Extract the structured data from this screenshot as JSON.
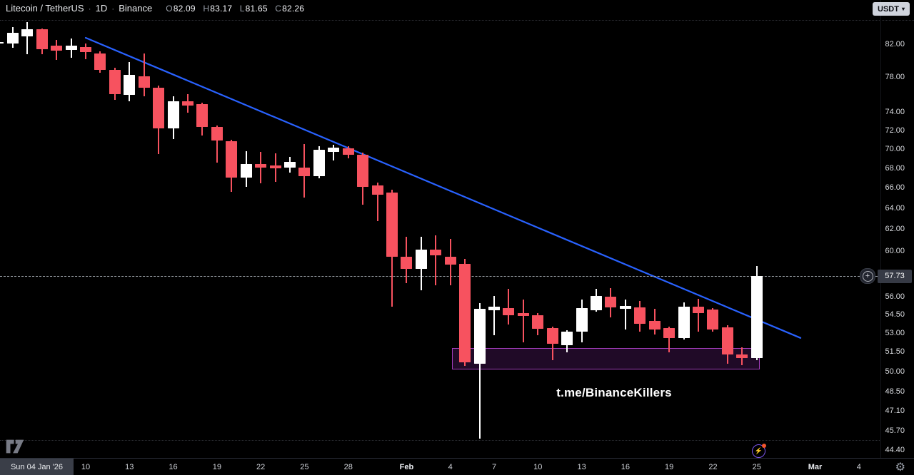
{
  "header": {
    "symbol": "Litecoin / TetherUS",
    "interval": "1D",
    "exchange": "Binance",
    "sep": "·",
    "ohlc": [
      {
        "label": "O",
        "value": "82.09"
      },
      {
        "label": "H",
        "value": "83.17"
      },
      {
        "label": "L",
        "value": "81.65"
      },
      {
        "label": "C",
        "value": "82.26"
      }
    ],
    "currency_button": {
      "label": "USDT",
      "caret": "▾"
    }
  },
  "footer": {
    "crosshair_date": "Sun 04 Jan '26",
    "gear_icon": "⚙"
  },
  "price_tag": {
    "plus": "+",
    "value": "57.73"
  },
  "chart_data": {
    "type": "candlestick",
    "title": "Litecoin / TetherUS · 1D · Binance",
    "scale": "logarithmic",
    "watermark": "t.me/BinanceKillers",
    "colors": {
      "up": "#ffffff",
      "down": "#f7525f",
      "trendline": "#2962ff",
      "zone_border": "#a23dbb",
      "zone_fill": "rgba(146,44,176,0.22)",
      "price_line": "#9aa0a6"
    },
    "last_price": 57.73,
    "y_axis": {
      "labels": [
        "82.00",
        "78.00",
        "74.00",
        "72.00",
        "70.00",
        "68.00",
        "66.00",
        "64.00",
        "62.00",
        "60.00",
        "56.00",
        "54.50",
        "53.00",
        "51.50",
        "50.00",
        "48.50",
        "47.10",
        "45.70",
        "44.40"
      ]
    },
    "x_axis": {
      "labels": [
        {
          "text": "10",
          "index": 6,
          "bold": false
        },
        {
          "text": "13",
          "index": 9,
          "bold": false
        },
        {
          "text": "16",
          "index": 12,
          "bold": false
        },
        {
          "text": "19",
          "index": 15,
          "bold": false
        },
        {
          "text": "22",
          "index": 18,
          "bold": false
        },
        {
          "text": "25",
          "index": 21,
          "bold": false
        },
        {
          "text": "28",
          "index": 24,
          "bold": false
        },
        {
          "text": "Feb",
          "index": 28,
          "bold": true
        },
        {
          "text": "4",
          "index": 31,
          "bold": false
        },
        {
          "text": "7",
          "index": 34,
          "bold": false
        },
        {
          "text": "10",
          "index": 37,
          "bold": false
        },
        {
          "text": "13",
          "index": 40,
          "bold": false
        },
        {
          "text": "16",
          "index": 43,
          "bold": false
        },
        {
          "text": "19",
          "index": 46,
          "bold": false
        },
        {
          "text": "22",
          "index": 49,
          "bold": false
        },
        {
          "text": "25",
          "index": 52,
          "bold": false
        },
        {
          "text": "Mar",
          "index": 56,
          "bold": true
        },
        {
          "text": "4",
          "index": 59,
          "bold": false
        }
      ]
    },
    "trendline": {
      "from": {
        "index": 6,
        "price": 82.8
      },
      "to": {
        "index": 55,
        "price": 52.6
      }
    },
    "zone": {
      "start_index": 31.1,
      "end_index": 52.1,
      "top_price": 51.8,
      "bottom_price": 50.25,
      "start_date": "Feb 4",
      "end_date": "Feb 25"
    },
    "candles": [
      {
        "d": "Jan 4",
        "o": 82.09,
        "h": 83.17,
        "l": 81.65,
        "c": 82.26
      },
      {
        "d": "Jan 5",
        "o": 82.06,
        "h": 84.15,
        "l": 81.53,
        "c": 83.4
      },
      {
        "d": "Jan 6",
        "o": 83.0,
        "h": 84.81,
        "l": 80.75,
        "c": 83.85
      },
      {
        "d": "Jan 7",
        "o": 83.85,
        "h": 84.0,
        "l": 80.78,
        "c": 81.38
      },
      {
        "d": "Jan 8",
        "o": 81.82,
        "h": 82.5,
        "l": 80.08,
        "c": 81.18
      },
      {
        "d": "Jan 9",
        "o": 81.29,
        "h": 82.71,
        "l": 80.31,
        "c": 81.82
      },
      {
        "d": "Jan 10",
        "o": 81.62,
        "h": 82.1,
        "l": 80.17,
        "c": 81.03
      },
      {
        "d": "Jan 11",
        "o": 80.89,
        "h": 81.1,
        "l": 78.57,
        "c": 78.88
      },
      {
        "d": "Jan 12",
        "o": 78.91,
        "h": 79.1,
        "l": 75.39,
        "c": 76.07
      },
      {
        "d": "Jan 13",
        "o": 75.96,
        "h": 79.85,
        "l": 75.25,
        "c": 78.29
      },
      {
        "d": "Jan 14",
        "o": 78.15,
        "h": 80.9,
        "l": 75.8,
        "c": 76.76
      },
      {
        "d": "Jan 15",
        "o": 76.76,
        "h": 77.0,
        "l": 69.44,
        "c": 72.21
      },
      {
        "d": "Jan 16",
        "o": 72.21,
        "h": 75.8,
        "l": 71.05,
        "c": 75.25
      },
      {
        "d": "Jan 17",
        "o": 75.2,
        "h": 76.07,
        "l": 73.92,
        "c": 74.77
      },
      {
        "d": "Jan 18",
        "o": 74.9,
        "h": 75.1,
        "l": 71.44,
        "c": 72.34
      },
      {
        "d": "Jan 19",
        "o": 72.34,
        "h": 72.5,
        "l": 68.58,
        "c": 70.92
      },
      {
        "d": "Jan 20",
        "o": 70.8,
        "h": 71.0,
        "l": 65.63,
        "c": 67.06
      },
      {
        "d": "Jan 21",
        "o": 67.06,
        "h": 69.77,
        "l": 66.1,
        "c": 68.45
      },
      {
        "d": "Jan 22",
        "o": 68.45,
        "h": 69.65,
        "l": 66.45,
        "c": 68.03
      },
      {
        "d": "Jan 23",
        "o": 68.27,
        "h": 69.52,
        "l": 66.57,
        "c": 67.96
      },
      {
        "d": "Jan 24",
        "o": 68.03,
        "h": 69.14,
        "l": 67.54,
        "c": 68.64
      },
      {
        "d": "Jan 25",
        "o": 68.08,
        "h": 70.54,
        "l": 65.04,
        "c": 67.17
      },
      {
        "d": "Jan 26",
        "o": 67.17,
        "h": 70.28,
        "l": 66.94,
        "c": 69.9
      },
      {
        "d": "Jan 27",
        "o": 69.65,
        "h": 70.41,
        "l": 68.77,
        "c": 70.1
      },
      {
        "d": "Jan 28",
        "o": 70.03,
        "h": 70.28,
        "l": 69.0,
        "c": 69.35
      },
      {
        "d": "Jan 29",
        "o": 69.4,
        "h": 69.6,
        "l": 64.34,
        "c": 66.1
      },
      {
        "d": "Jan 30",
        "o": 66.27,
        "h": 66.5,
        "l": 62.74,
        "c": 65.28
      },
      {
        "d": "Jan 31",
        "o": 65.53,
        "h": 65.8,
        "l": 55.13,
        "c": 59.47
      },
      {
        "d": "Feb 1",
        "o": 59.47,
        "h": 61.32,
        "l": 57.16,
        "c": 58.41
      },
      {
        "d": "Feb 2",
        "o": 58.41,
        "h": 61.32,
        "l": 56.55,
        "c": 60.12
      },
      {
        "d": "Feb 3",
        "o": 60.12,
        "h": 61.43,
        "l": 56.96,
        "c": 59.58
      },
      {
        "d": "Feb 4",
        "o": 59.47,
        "h": 61.1,
        "l": 56.96,
        "c": 58.79
      },
      {
        "d": "Feb 5",
        "o": 58.83,
        "h": 59.26,
        "l": 50.42,
        "c": 50.69
      },
      {
        "d": "Feb 6",
        "o": 50.58,
        "h": 55.43,
        "l": 45.18,
        "c": 54.94
      },
      {
        "d": "Feb 7",
        "o": 54.85,
        "h": 56.03,
        "l": 52.79,
        "c": 55.14
      },
      {
        "d": "Feb 8",
        "o": 55.04,
        "h": 56.64,
        "l": 53.65,
        "c": 54.45
      },
      {
        "d": "Feb 9",
        "o": 54.59,
        "h": 55.73,
        "l": 52.23,
        "c": 54.35
      },
      {
        "d": "Feb 10",
        "o": 54.41,
        "h": 54.6,
        "l": 52.79,
        "c": 53.31
      },
      {
        "d": "Feb 11",
        "o": 53.37,
        "h": 53.5,
        "l": 50.85,
        "c": 52.13
      },
      {
        "d": "Feb 12",
        "o": 52.04,
        "h": 53.2,
        "l": 51.48,
        "c": 53.08
      },
      {
        "d": "Feb 13",
        "o": 53.08,
        "h": 55.73,
        "l": 52.23,
        "c": 55.04
      },
      {
        "d": "Feb 14",
        "o": 54.85,
        "h": 56.64,
        "l": 54.75,
        "c": 56.03
      },
      {
        "d": "Feb 15",
        "o": 55.97,
        "h": 56.74,
        "l": 54.25,
        "c": 55.08
      },
      {
        "d": "Feb 16",
        "o": 54.94,
        "h": 55.73,
        "l": 53.27,
        "c": 55.2
      },
      {
        "d": "Feb 17",
        "o": 55.08,
        "h": 55.63,
        "l": 53.08,
        "c": 53.76
      },
      {
        "d": "Feb 18",
        "o": 53.99,
        "h": 54.94,
        "l": 52.89,
        "c": 53.27
      },
      {
        "d": "Feb 19",
        "o": 53.41,
        "h": 53.5,
        "l": 51.48,
        "c": 52.61
      },
      {
        "d": "Feb 20",
        "o": 52.61,
        "h": 55.53,
        "l": 52.5,
        "c": 55.14
      },
      {
        "d": "Feb 21",
        "o": 55.14,
        "h": 55.83,
        "l": 53.08,
        "c": 54.64
      },
      {
        "d": "Feb 22",
        "o": 54.88,
        "h": 55.0,
        "l": 53.08,
        "c": 53.27
      },
      {
        "d": "Feb 23",
        "o": 53.47,
        "h": 53.6,
        "l": 50.58,
        "c": 51.29
      },
      {
        "d": "Feb 24",
        "o": 51.29,
        "h": 51.85,
        "l": 50.49,
        "c": 51.02
      },
      {
        "d": "Feb 25",
        "o": 51.02,
        "h": 58.63,
        "l": 50.85,
        "c": 57.73
      }
    ]
  }
}
